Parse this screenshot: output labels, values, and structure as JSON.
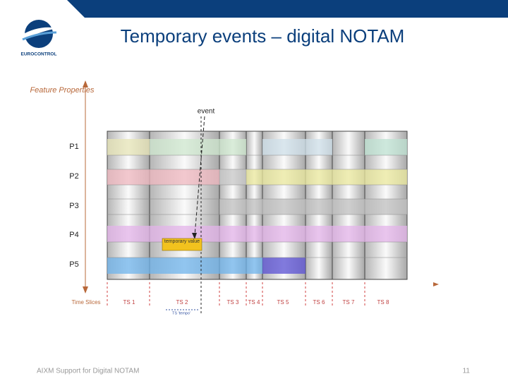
{
  "header": {
    "title": "Temporary events – digital NOTAM",
    "logo": "EUROCONTROL"
  },
  "diagram": {
    "y_axis_label": "Feature Properties",
    "properties": [
      "P1",
      "P2",
      "P3",
      "P4",
      "P5"
    ],
    "event_label": "event",
    "temporary_value_label": "temporary value",
    "x_axis_label": "Time Slices",
    "time_slices": [
      "TS 1",
      "TS 2",
      "TS 3",
      "TS 4",
      "TS 5",
      "TS 6",
      "TS 7",
      "TS 8"
    ],
    "tempo_label": "TS 'tempo'"
  },
  "footer": {
    "text": "AIXM Support for Digital NOTAM",
    "page": "11"
  }
}
